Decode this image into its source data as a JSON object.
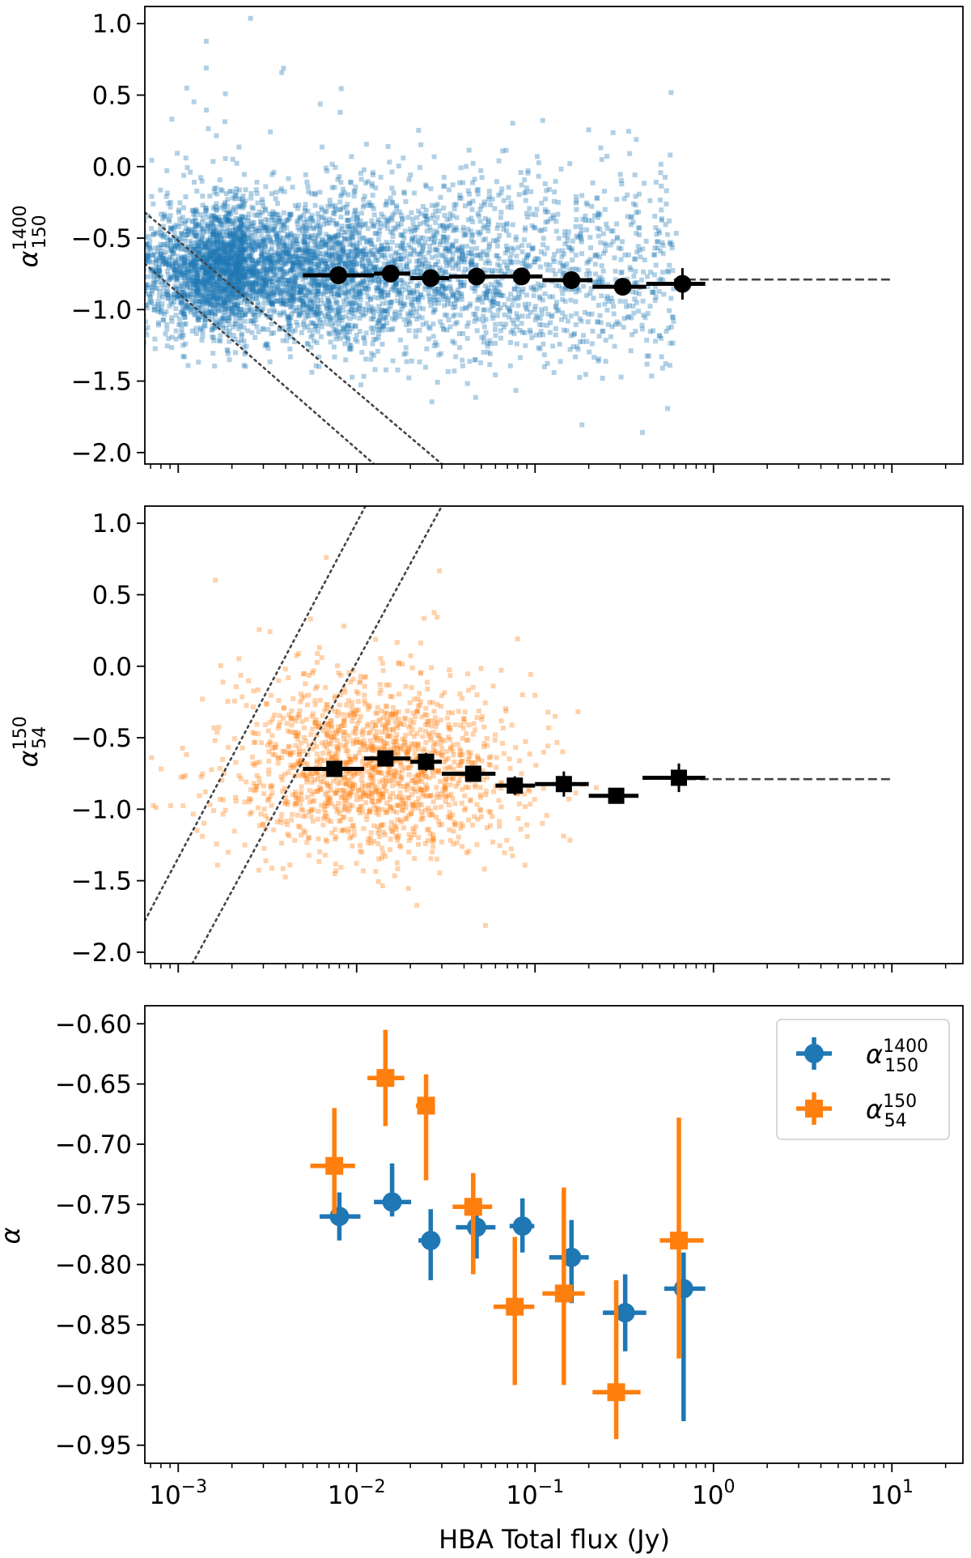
{
  "figure": {
    "xlabel": "HBA Total flux (Jy)",
    "x_scale": "log",
    "xlim": [
      0.00065,
      25
    ],
    "x_ticks": [
      {
        "value": 0.001,
        "base": "10",
        "exp": "−3"
      },
      {
        "value": 0.01,
        "base": "10",
        "exp": "−2"
      },
      {
        "value": 0.1,
        "base": "10",
        "exp": "−1"
      },
      {
        "value": 1,
        "base": "10",
        "exp": "0"
      },
      {
        "value": 10,
        "base": "10",
        "exp": "1"
      }
    ]
  },
  "chart_data": [
    {
      "type": "scatter",
      "panel": "top",
      "ylabel": {
        "symbol": "α",
        "sup": "1400",
        "sub": "150"
      },
      "ylim": [
        -2.08,
        1.12
      ],
      "y_ticks": [
        "1.0",
        "0.5",
        "0.0",
        "−0.5",
        "−1.0",
        "−1.5",
        "−2.0"
      ],
      "y_tick_values": [
        1.0,
        0.5,
        0.0,
        -0.5,
        -1.0,
        -1.5,
        -2.0
      ],
      "scatter_color": "#1f77b4",
      "scatter_cloud": {
        "n_points": 5200,
        "center_flux": 0.0024,
        "center_alpha": -0.72
      },
      "binned": {
        "marker": "circle",
        "color": "#000000",
        "points": [
          {
            "x": 0.0079,
            "y": -0.76,
            "xlo": 0.005,
            "xhi": 0.0125,
            "yerr": 0.02
          },
          {
            "x": 0.0155,
            "y": -0.748,
            "xlo": 0.0125,
            "xhi": 0.02,
            "yerr": 0.03
          },
          {
            "x": 0.026,
            "y": -0.78,
            "xlo": 0.02,
            "xhi": 0.033,
            "yerr": 0.035
          },
          {
            "x": 0.047,
            "y": -0.769,
            "xlo": 0.033,
            "xhi": 0.062,
            "yerr": 0.027
          },
          {
            "x": 0.084,
            "y": -0.768,
            "xlo": 0.062,
            "xhi": 0.11,
            "yerr": 0.025
          },
          {
            "x": 0.16,
            "y": -0.794,
            "xlo": 0.11,
            "xhi": 0.21,
            "yerr": 0.038
          },
          {
            "x": 0.31,
            "y": -0.84,
            "xlo": 0.21,
            "xhi": 0.42,
            "yerr": 0.032
          },
          {
            "x": 0.67,
            "y": -0.82,
            "xlo": 0.42,
            "xhi": 0.9,
            "yerr": 0.11
          }
        ]
      },
      "dashed_line": {
        "y": -0.79,
        "x_from": 0.6,
        "x_to": 10
      },
      "dotted_lines": [
        {
          "x1": 0.00065,
          "y1": -0.32,
          "x2": 0.03,
          "y2": -2.08
        },
        {
          "x1": 0.00065,
          "y1": -0.68,
          "x2": 0.0125,
          "y2": -2.08
        }
      ]
    },
    {
      "type": "scatter",
      "panel": "middle",
      "ylabel": {
        "symbol": "α",
        "sup": "150",
        "sub": "54"
      },
      "ylim": [
        -2.08,
        1.12
      ],
      "y_ticks": [
        "1.0",
        "0.5",
        "0.0",
        "−0.5",
        "−1.0",
        "−1.5",
        "−2.0"
      ],
      "y_tick_values": [
        1.0,
        0.5,
        0.0,
        -0.5,
        -1.0,
        -1.5,
        -2.0
      ],
      "scatter_color": "#ff7f0e",
      "scatter_cloud": {
        "n_points": 1500,
        "center_flux": 0.012,
        "center_alpha": -0.72
      },
      "binned": {
        "marker": "square",
        "color": "#000000",
        "points": [
          {
            "x": 0.0075,
            "y": -0.718,
            "xlo": 0.005,
            "xhi": 0.011,
            "yerr": 0.048
          },
          {
            "x": 0.0145,
            "y": -0.645,
            "xlo": 0.011,
            "xhi": 0.02,
            "yerr": 0.04
          },
          {
            "x": 0.0245,
            "y": -0.668,
            "xlo": 0.02,
            "xhi": 0.03,
            "yerr": 0.062
          },
          {
            "x": 0.045,
            "y": -0.752,
            "xlo": 0.03,
            "xhi": 0.06,
            "yerr": 0.056
          },
          {
            "x": 0.077,
            "y": -0.835,
            "xlo": 0.06,
            "xhi": 0.1,
            "yerr": 0.065
          },
          {
            "x": 0.145,
            "y": -0.824,
            "xlo": 0.1,
            "xhi": 0.2,
            "yerr": 0.088
          },
          {
            "x": 0.285,
            "y": -0.906,
            "xlo": 0.2,
            "xhi": 0.38,
            "yerr": 0.04
          },
          {
            "x": 0.64,
            "y": -0.78,
            "xlo": 0.4,
            "xhi": 0.9,
            "yerr": 0.1
          }
        ]
      },
      "dashed_line": {
        "y": -0.79,
        "x_from": 0.6,
        "x_to": 10
      },
      "dotted_lines": [
        {
          "x1": 0.00065,
          "y1": -1.78,
          "x2": 0.0112,
          "y2": 1.12
        },
        {
          "x1": 0.0012,
          "y1": -2.08,
          "x2": 0.03,
          "y2": 1.12
        }
      ]
    },
    {
      "type": "errorbar",
      "panel": "bottom",
      "ylabel": "α",
      "ylim": [
        -0.965,
        -0.585
      ],
      "y_ticks": [
        "−0.60",
        "−0.65",
        "−0.70",
        "−0.75",
        "−0.80",
        "−0.85",
        "−0.90",
        "−0.95"
      ],
      "y_tick_values": [
        -0.6,
        -0.65,
        -0.7,
        -0.75,
        -0.8,
        -0.85,
        -0.9,
        -0.95
      ],
      "legend_placement": "top-right",
      "series": [
        {
          "name": {
            "symbol": "α",
            "sup": "1400",
            "sub": "150"
          },
          "color": "#1f77b4",
          "marker": "circle",
          "points": [
            {
              "x": 0.008,
              "y": -0.76,
              "xlo": 0.0062,
              "xhi": 0.0105,
              "ylo": -0.78,
              "yhi": -0.74
            },
            {
              "x": 0.0158,
              "y": -0.748,
              "xlo": 0.0125,
              "xhi": 0.0202,
              "ylo": -0.76,
              "yhi": -0.716
            },
            {
              "x": 0.026,
              "y": -0.78,
              "xlo": 0.0222,
              "xhi": 0.0295,
              "ylo": -0.813,
              "yhi": -0.754
            },
            {
              "x": 0.047,
              "y": -0.769,
              "xlo": 0.036,
              "xhi": 0.06,
              "ylo": -0.795,
              "yhi": -0.753
            },
            {
              "x": 0.085,
              "y": -0.768,
              "xlo": 0.072,
              "xhi": 0.099,
              "ylo": -0.79,
              "yhi": -0.745
            },
            {
              "x": 0.16,
              "y": -0.794,
              "xlo": 0.12,
              "xhi": 0.2,
              "ylo": -0.832,
              "yhi": -0.763
            },
            {
              "x": 0.32,
              "y": -0.84,
              "xlo": 0.24,
              "xhi": 0.42,
              "ylo": -0.872,
              "yhi": -0.808
            },
            {
              "x": 0.68,
              "y": -0.82,
              "xlo": 0.53,
              "xhi": 0.9,
              "ylo": -0.93,
              "yhi": -0.79
            }
          ]
        },
        {
          "name": {
            "symbol": "α",
            "sup": "150",
            "sub": "54"
          },
          "color": "#ff7f0e",
          "marker": "square",
          "points": [
            {
              "x": 0.0075,
              "y": -0.718,
              "xlo": 0.0055,
              "xhi": 0.0098,
              "ylo": -0.758,
              "yhi": -0.67
            },
            {
              "x": 0.0145,
              "y": -0.645,
              "xlo": 0.0115,
              "xhi": 0.0185,
              "ylo": -0.685,
              "yhi": -0.605
            },
            {
              "x": 0.0245,
              "y": -0.668,
              "xlo": 0.0215,
              "xhi": 0.0275,
              "ylo": -0.73,
              "yhi": -0.642
            },
            {
              "x": 0.045,
              "y": -0.752,
              "xlo": 0.0345,
              "xhi": 0.0575,
              "ylo": -0.808,
              "yhi": -0.724
            },
            {
              "x": 0.077,
              "y": -0.835,
              "xlo": 0.0585,
              "xhi": 0.099,
              "ylo": -0.9,
              "yhi": -0.777
            },
            {
              "x": 0.145,
              "y": -0.824,
              "xlo": 0.11,
              "xhi": 0.19,
              "ylo": -0.9,
              "yhi": -0.736
            },
            {
              "x": 0.285,
              "y": -0.906,
              "xlo": 0.21,
              "xhi": 0.39,
              "ylo": -0.945,
              "yhi": -0.813
            },
            {
              "x": 0.64,
              "y": -0.78,
              "xlo": 0.5,
              "xhi": 0.88,
              "ylo": -0.878,
              "yhi": -0.678
            }
          ]
        }
      ]
    }
  ]
}
